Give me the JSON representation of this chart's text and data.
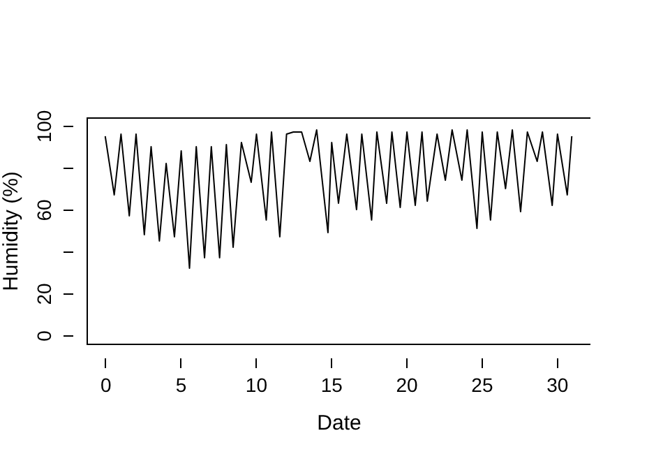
{
  "chart_data": {
    "type": "line",
    "xlabel": "Date",
    "ylabel": "Humidity (%)",
    "x": [
      0,
      0.6,
      1.05,
      1.6,
      2.05,
      2.6,
      3.05,
      3.6,
      4.05,
      4.6,
      5.05,
      5.6,
      6.05,
      6.6,
      7.05,
      7.6,
      8.05,
      8.5,
      9.05,
      9.7,
      10.05,
      10.7,
      11.05,
      11.6,
      12.05,
      12.5,
      13.05,
      13.6,
      14.05,
      14.8,
      15.05,
      15.5,
      16.05,
      16.7,
      17.05,
      17.7,
      18.05,
      18.7,
      19.05,
      19.6,
      20.05,
      20.6,
      21.05,
      21.4,
      22.05,
      22.6,
      23.05,
      23.7,
      24.05,
      24.7,
      25.05,
      25.6,
      26.05,
      26.6,
      27.05,
      27.6,
      28.05,
      28.7,
      29.05,
      29.7,
      30.05,
      30.7,
      31
    ],
    "series": [
      {
        "color": "#000000",
        "values": [
          95,
          67,
          96,
          57,
          96,
          48,
          90,
          45,
          82,
          47,
          88,
          32,
          90,
          37,
          90,
          37,
          91,
          42,
          92,
          73,
          96,
          55,
          97,
          47,
          96,
          97,
          97,
          83,
          98,
          49,
          92,
          63,
          96,
          60,
          96,
          55,
          97,
          63,
          97,
          61,
          97,
          62,
          97,
          64,
          96,
          74,
          98,
          74,
          98,
          51,
          97,
          55,
          97,
          70,
          98,
          59,
          97,
          83,
          97,
          62,
          96,
          67,
          95
        ]
      }
    ],
    "xlim": [
      -1.24,
      32.24
    ],
    "xticks": [
      0,
      5,
      10,
      15,
      20,
      25,
      30
    ],
    "ylim": [
      -4,
      104
    ],
    "yticks": [
      0,
      20,
      {
        "value": 40,
        "label": null
      },
      60,
      {
        "value": 80,
        "label": null
      },
      100
    ],
    "grid": false,
    "marker": "none",
    "line_style": "solid"
  }
}
